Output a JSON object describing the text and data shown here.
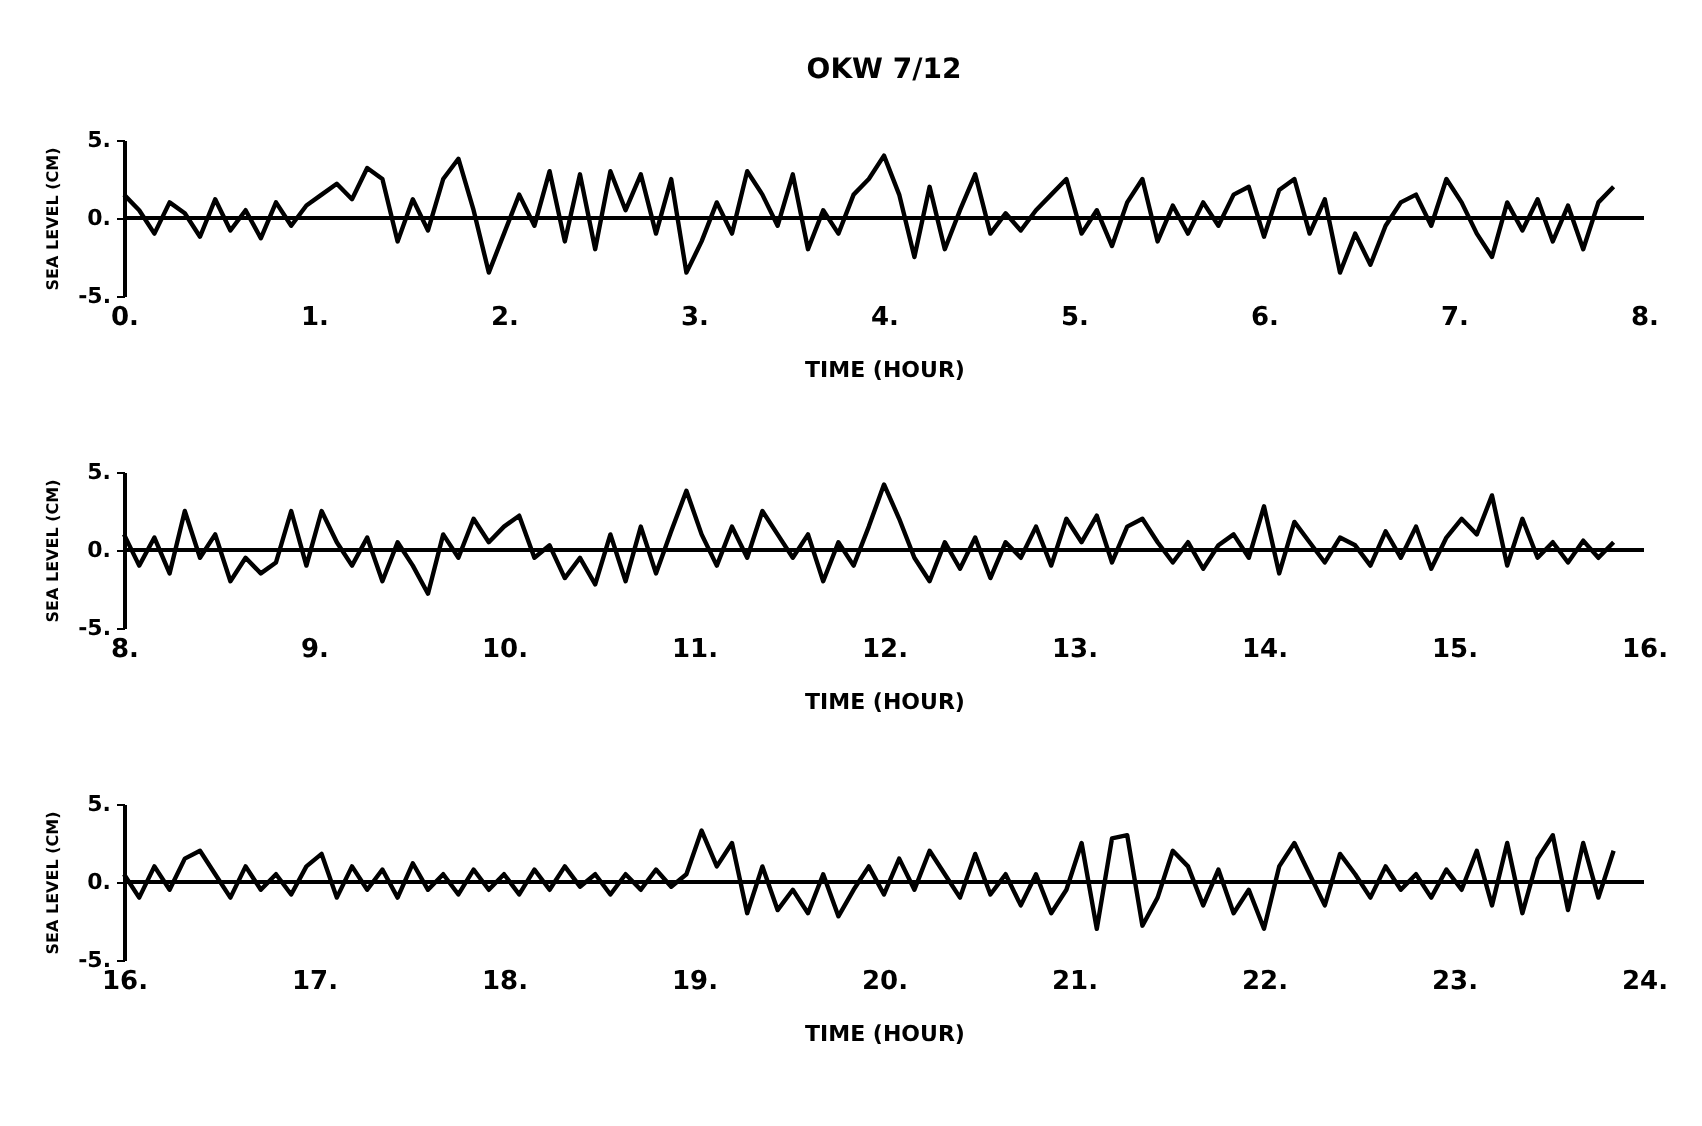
{
  "chart_data": [
    {
      "type": "line",
      "title": "OKW 7/12",
      "xlabel": "TIME (HOUR)",
      "ylabel": "SEA LEVEL (CM)",
      "xlim": [
        0,
        8
      ],
      "ylim": [
        -5,
        5
      ],
      "xticks": [
        {
          "value": 0,
          "label": "0."
        },
        {
          "value": 1,
          "label": "1."
        },
        {
          "value": 2,
          "label": "2."
        },
        {
          "value": 3,
          "label": "3."
        },
        {
          "value": 4,
          "label": "4."
        },
        {
          "value": 5,
          "label": "5."
        },
        {
          "value": 6,
          "label": "6."
        },
        {
          "value": 7,
          "label": "7."
        },
        {
          "value": 8,
          "label": "8."
        }
      ],
      "yticks": [
        {
          "value": -5,
          "label": "-5."
        },
        {
          "value": 0,
          "label": "0."
        },
        {
          "value": 5,
          "label": "5."
        }
      ],
      "grid": false,
      "ref_lines": [
        {
          "axis": "y",
          "value": 0
        }
      ],
      "series": [
        {
          "color": "#000000",
          "x": [
            0,
            0.08,
            0.16,
            0.24,
            0.32,
            0.4,
            0.48,
            0.56,
            0.64,
            0.72,
            0.8,
            0.88,
            0.96,
            1.04,
            1.12,
            1.2,
            1.28,
            1.36,
            1.44,
            1.52,
            1.6,
            1.68,
            1.76,
            1.84,
            1.92,
            2,
            2.08,
            2.16,
            2.24,
            2.32,
            2.4,
            2.48,
            2.56,
            2.64,
            2.72,
            2.8,
            2.88,
            2.96,
            3.04,
            3.12,
            3.2,
            3.28,
            3.36,
            3.44,
            3.52,
            3.6,
            3.68,
            3.76,
            3.84,
            3.92,
            4,
            4.08,
            4.16,
            4.24,
            4.32,
            4.4,
            4.48,
            4.56,
            4.64,
            4.72,
            4.8,
            4.88,
            4.96,
            5.04,
            5.12,
            5.2,
            5.28,
            5.36,
            5.44,
            5.52,
            5.6,
            5.68,
            5.76,
            5.84,
            5.92,
            6,
            6.08,
            6.16,
            6.24,
            6.32,
            6.4,
            6.48,
            6.56,
            6.64,
            6.72,
            6.8,
            6.88,
            6.96,
            7.04,
            7.12,
            7.2,
            7.28,
            7.36,
            7.44,
            7.52,
            7.6,
            7.68,
            7.76,
            7.84
          ],
          "values": [
            1.5,
            0.5,
            -1,
            1,
            0.3,
            -1.2,
            1.2,
            -0.8,
            0.5,
            -1.3,
            1,
            -0.5,
            0.8,
            1.5,
            2.2,
            1.2,
            3.2,
            2.5,
            -1.5,
            1.2,
            -0.8,
            2.5,
            3.8,
            0.5,
            -3.5,
            -1,
            1.5,
            -0.5,
            3,
            -1.5,
            2.8,
            -2,
            3,
            0.5,
            2.8,
            -1,
            2.5,
            -3.5,
            -1.5,
            1,
            -1,
            3,
            1.5,
            -0.5,
            2.8,
            -2,
            0.5,
            -1,
            1.5,
            2.5,
            4,
            1.5,
            -2.5,
            2,
            -2,
            0.5,
            2.8,
            -1,
            0.3,
            -0.8,
            0.5,
            1.5,
            2.5,
            -1,
            0.5,
            -1.8,
            1,
            2.5,
            -1.5,
            0.8,
            -1,
            1,
            -0.5,
            1.5,
            2,
            -1.2,
            1.8,
            2.5,
            -1,
            1.2,
            -3.5,
            -1,
            -3,
            -0.5,
            1,
            1.5,
            -0.5,
            2.5,
            1,
            -1,
            -2.5,
            1,
            -0.8,
            1.2,
            -1.5,
            0.8,
            -2,
            1,
            2
          ]
        }
      ]
    },
    {
      "type": "line",
      "xlabel": "TIME (HOUR)",
      "ylabel": "SEA LEVEL (CM)",
      "xlim": [
        8,
        16
      ],
      "ylim": [
        -5,
        5
      ],
      "xticks": [
        {
          "value": 8,
          "label": "8."
        },
        {
          "value": 9,
          "label": "9."
        },
        {
          "value": 10,
          "label": "10."
        },
        {
          "value": 11,
          "label": "11."
        },
        {
          "value": 12,
          "label": "12."
        },
        {
          "value": 13,
          "label": "13."
        },
        {
          "value": 14,
          "label": "14."
        },
        {
          "value": 15,
          "label": "15."
        },
        {
          "value": 16,
          "label": "16."
        }
      ],
      "yticks": [
        {
          "value": -5,
          "label": "-5."
        },
        {
          "value": 0,
          "label": "0."
        },
        {
          "value": 5,
          "label": "5."
        }
      ],
      "grid": false,
      "ref_lines": [
        {
          "axis": "y",
          "value": 0
        }
      ],
      "series": [
        {
          "color": "#000000",
          "x": [
            8,
            8.08,
            8.16,
            8.24,
            8.32,
            8.4,
            8.48,
            8.56,
            8.64,
            8.72,
            8.8,
            8.88,
            8.96,
            9.04,
            9.12,
            9.2,
            9.28,
            9.36,
            9.44,
            9.52,
            9.6,
            9.68,
            9.76,
            9.84,
            9.92,
            10,
            10.08,
            10.16,
            10.24,
            10.32,
            10.4,
            10.48,
            10.56,
            10.64,
            10.72,
            10.8,
            10.88,
            10.96,
            11.04,
            11.12,
            11.2,
            11.28,
            11.36,
            11.44,
            11.52,
            11.6,
            11.68,
            11.76,
            11.84,
            11.92,
            12,
            12.08,
            12.16,
            12.24,
            12.32,
            12.4,
            12.48,
            12.56,
            12.64,
            12.72,
            12.8,
            12.88,
            12.96,
            13.04,
            13.12,
            13.2,
            13.28,
            13.36,
            13.44,
            13.52,
            13.6,
            13.68,
            13.76,
            13.84,
            13.92,
            14,
            14.08,
            14.16,
            14.24,
            14.32,
            14.4,
            14.48,
            14.56,
            14.64,
            14.72,
            14.8,
            14.88,
            14.96,
            15.04,
            15.12,
            15.2,
            15.28,
            15.36,
            15.44,
            15.52,
            15.6,
            15.68,
            15.76,
            15.84
          ],
          "values": [
            1,
            -1,
            0.8,
            -1.5,
            2.5,
            -0.5,
            1,
            -2,
            -0.5,
            -1.5,
            -0.8,
            2.5,
            -1,
            2.5,
            0.5,
            -1,
            0.8,
            -2,
            0.5,
            -1,
            -2.8,
            1,
            -0.5,
            2,
            0.5,
            1.5,
            2.2,
            -0.5,
            0.3,
            -1.8,
            -0.5,
            -2.2,
            1,
            -2,
            1.5,
            -1.5,
            1.2,
            3.8,
            1,
            -1,
            1.5,
            -0.5,
            2.5,
            1,
            -0.5,
            1,
            -2,
            0.5,
            -1,
            1.5,
            4.2,
            2,
            -0.5,
            -2,
            0.5,
            -1.2,
            0.8,
            -1.8,
            0.5,
            -0.5,
            1.5,
            -1,
            2,
            0.5,
            2.2,
            -0.8,
            1.5,
            2,
            0.5,
            -0.8,
            0.5,
            -1.2,
            0.3,
            1,
            -0.5,
            2.8,
            -1.5,
            1.8,
            0.5,
            -0.8,
            0.8,
            0.3,
            -1,
            1.2,
            -0.5,
            1.5,
            -1.2,
            0.8,
            2,
            1,
            3.5,
            -1,
            2,
            -0.5,
            0.5,
            -0.8,
            0.6,
            -0.5,
            0.5
          ]
        }
      ]
    },
    {
      "type": "line",
      "xlabel": "TIME (HOUR)",
      "ylabel": "SEA LEVEL (CM)",
      "xlim": [
        16,
        24
      ],
      "ylim": [
        -5,
        5
      ],
      "xticks": [
        {
          "value": 16,
          "label": "16."
        },
        {
          "value": 17,
          "label": "17."
        },
        {
          "value": 18,
          "label": "18."
        },
        {
          "value": 19,
          "label": "19."
        },
        {
          "value": 20,
          "label": "20."
        },
        {
          "value": 21,
          "label": "21."
        },
        {
          "value": 22,
          "label": "22."
        },
        {
          "value": 23,
          "label": "23."
        },
        {
          "value": 24,
          "label": "24."
        }
      ],
      "yticks": [
        {
          "value": -5,
          "label": "-5."
        },
        {
          "value": 0,
          "label": "0."
        },
        {
          "value": 5,
          "label": "5."
        }
      ],
      "grid": false,
      "ref_lines": [
        {
          "axis": "y",
          "value": 0
        }
      ],
      "series": [
        {
          "color": "#000000",
          "x": [
            16,
            16.08,
            16.16,
            16.24,
            16.32,
            16.4,
            16.48,
            16.56,
            16.64,
            16.72,
            16.8,
            16.88,
            16.96,
            17.04,
            17.12,
            17.2,
            17.28,
            17.36,
            17.44,
            17.52,
            17.6,
            17.68,
            17.76,
            17.84,
            17.92,
            18,
            18.08,
            18.16,
            18.24,
            18.32,
            18.4,
            18.48,
            18.56,
            18.64,
            18.72,
            18.8,
            18.88,
            18.96,
            19.04,
            19.12,
            19.2,
            19.28,
            19.36,
            19.44,
            19.52,
            19.6,
            19.68,
            19.76,
            19.84,
            19.92,
            20,
            20.08,
            20.16,
            20.24,
            20.32,
            20.4,
            20.48,
            20.56,
            20.64,
            20.72,
            20.8,
            20.88,
            20.96,
            21.04,
            21.12,
            21.2,
            21.28,
            21.36,
            21.44,
            21.52,
            21.6,
            21.68,
            21.76,
            21.84,
            21.92,
            22,
            22.08,
            22.16,
            22.24,
            22.32,
            22.4,
            22.48,
            22.56,
            22.64,
            22.72,
            22.8,
            22.88,
            22.96,
            23.04,
            23.12,
            23.2,
            23.28,
            23.36,
            23.44,
            23.52,
            23.6,
            23.68,
            23.76,
            23.84
          ],
          "values": [
            0.5,
            -1,
            1,
            -0.5,
            1.5,
            2,
            0.5,
            -1,
            1,
            -0.5,
            0.5,
            -0.8,
            1,
            1.8,
            -1,
            1,
            -0.5,
            0.8,
            -1,
            1.2,
            -0.5,
            0.5,
            -0.8,
            0.8,
            -0.5,
            0.5,
            -0.8,
            0.8,
            -0.5,
            1,
            -0.3,
            0.5,
            -0.8,
            0.5,
            -0.5,
            0.8,
            -0.3,
            0.5,
            3.3,
            1,
            2.5,
            -2,
            1,
            -1.8,
            -0.5,
            -2,
            0.5,
            -2.2,
            -0.5,
            1,
            -0.8,
            1.5,
            -0.5,
            2,
            0.5,
            -1,
            1.8,
            -0.8,
            0.5,
            -1.5,
            0.5,
            -2,
            -0.5,
            2.5,
            -3,
            2.8,
            3,
            -2.8,
            -1,
            2,
            1,
            -1.5,
            0.8,
            -2,
            -0.5,
            -3,
            1,
            2.5,
            0.5,
            -1.5,
            1.8,
            0.5,
            -1,
            1,
            -0.5,
            0.5,
            -1,
            0.8,
            -0.5,
            2,
            -1.5,
            2.5,
            -2,
            1.5,
            3,
            -1.8,
            2.5,
            -1,
            2
          ]
        }
      ]
    }
  ]
}
